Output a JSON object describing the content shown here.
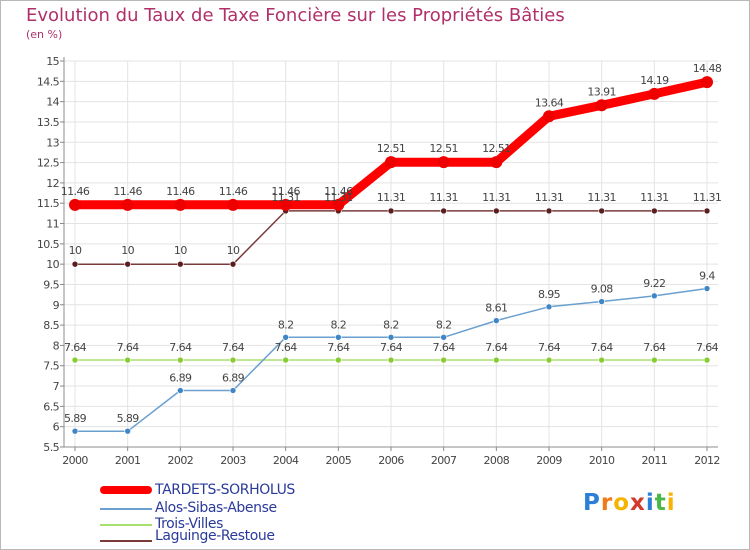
{
  "header": {
    "title": "Evolution du Taux de Taxe Foncière sur les Propriétés Bâties",
    "unit": "(en %)"
  },
  "chart_data": {
    "type": "line",
    "title": "Evolution du Taux de Taxe Foncière sur les Propriétés Bâties",
    "ylabel": "(en %)",
    "xlabel": "",
    "x": [
      "2000",
      "2001",
      "2002",
      "2003",
      "2004",
      "2005",
      "2006",
      "2007",
      "2008",
      "2009",
      "2010",
      "2011",
      "2012"
    ],
    "ylim": [
      5.5,
      15
    ],
    "yticks": [
      "5.5",
      "6",
      "6.5",
      "7",
      "7.5",
      "8",
      "8.5",
      "9",
      "9.5",
      "10",
      "10.5",
      "11",
      "11.5",
      "12",
      "12.5",
      "13",
      "13.5",
      "14",
      "14.5",
      "15"
    ],
    "grid": true,
    "legend_position": "bottom-left",
    "series": [
      {
        "name": "TARDETS-SORHOLUS",
        "values": [
          11.46,
          11.46,
          11.46,
          11.46,
          11.46,
          11.46,
          12.51,
          12.51,
          12.51,
          13.64,
          13.91,
          14.19,
          14.48
        ],
        "labels": [
          "11.46",
          "11.46",
          "11.46",
          "11.46",
          "11.46",
          "11.46",
          "12.51",
          "12.51",
          "12.51",
          "13.64",
          "13.91",
          "14.19",
          "14.48"
        ],
        "color": "#ff0000",
        "marker": "#ee0000"
      },
      {
        "name": "Alos-Sibas-Abense",
        "values": [
          5.89,
          5.89,
          6.89,
          6.89,
          8.2,
          8.2,
          8.2,
          8.2,
          8.61,
          8.95,
          9.08,
          9.22,
          9.4
        ],
        "labels": [
          "5.89",
          "5.89",
          "6.89",
          "6.89",
          "8.2",
          "8.2",
          "8.2",
          "8.2",
          "8.61",
          "8.95",
          "9.08",
          "9.22",
          "9.4"
        ],
        "color": "#6a9fd0",
        "marker": "#3f86c7"
      },
      {
        "name": "Trois-Villes",
        "values": [
          7.64,
          7.64,
          7.64,
          7.64,
          7.64,
          7.64,
          7.64,
          7.64,
          7.64,
          7.64,
          7.64,
          7.64,
          7.64
        ],
        "labels": [
          "7.64",
          "7.64",
          "7.64",
          "7.64",
          "7.64",
          "7.64",
          "7.64",
          "7.64",
          "7.64",
          "7.64",
          "7.64",
          "7.64",
          "7.64"
        ],
        "color": "#a8e070",
        "marker": "#88cc33"
      },
      {
        "name": "Laguinge-Restoue",
        "values": [
          10,
          10,
          10,
          10,
          11.31,
          11.31,
          11.31,
          11.31,
          11.31,
          11.31,
          11.31,
          11.31,
          11.31
        ],
        "labels": [
          "10",
          "10",
          "10",
          "10",
          "11.31",
          "11.31",
          "11.31",
          "11.31",
          "11.31",
          "11.31",
          "11.31",
          "11.31",
          "11.31"
        ],
        "color": "#7a3a3a",
        "marker": "#5a1e1e"
      }
    ]
  },
  "legend": {
    "items": [
      {
        "label": "TARDETS-SORHOLUS",
        "color": "#ff0000"
      },
      {
        "label": "Alos-Sibas-Abense",
        "color": "#6a9fd0"
      },
      {
        "label": "Trois-Villes",
        "color": "#a8e070"
      },
      {
        "label": "Laguinge-Restoue",
        "color": "#7a3a3a"
      }
    ]
  },
  "logo": {
    "letters": [
      "P",
      "r",
      "o",
      "x",
      "i",
      "t",
      "i"
    ],
    "colors": [
      "#2c7fd6",
      "#f07a1a",
      "#f4b400",
      "#d33a2c",
      "#2c7fd6",
      "#49b848",
      "#f4b400"
    ]
  }
}
